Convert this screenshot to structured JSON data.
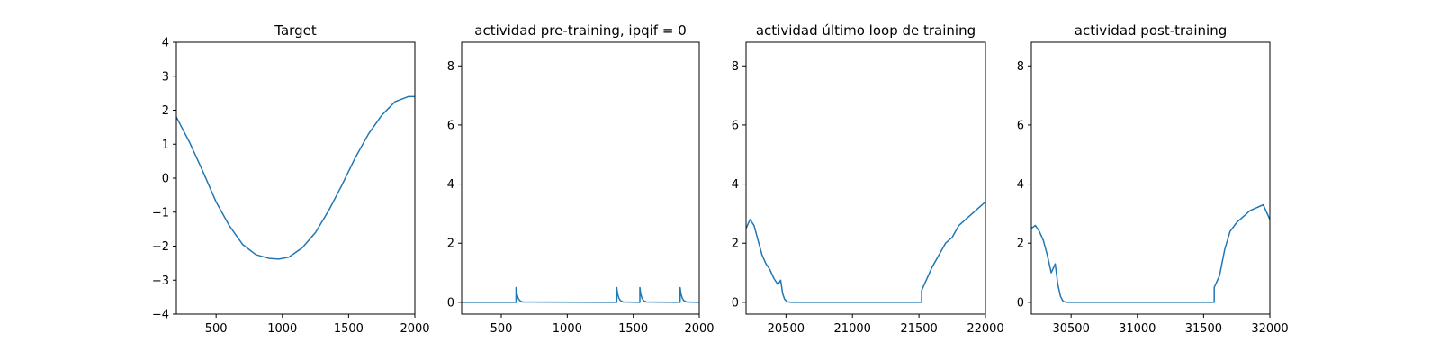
{
  "chart_data": [
    {
      "type": "line",
      "title": "Target",
      "xlim": [
        200,
        2000
      ],
      "ylim": [
        -4,
        4
      ],
      "xticks": [
        500,
        1000,
        1500,
        2000
      ],
      "yticks": [
        -4,
        -3,
        -2,
        -1,
        0,
        1,
        2,
        3,
        4
      ],
      "color": "#1f77b4",
      "series": [
        {
          "x": [
            200,
            300,
            400,
            500,
            600,
            700,
            800,
            900,
            975,
            1050,
            1150,
            1250,
            1350,
            1450,
            1550,
            1650,
            1750,
            1850,
            1950,
            2000
          ],
          "y": [
            1.8,
            1.05,
            0.2,
            -0.7,
            -1.4,
            -1.95,
            -2.25,
            -2.36,
            -2.38,
            -2.32,
            -2.05,
            -1.6,
            -0.95,
            -0.2,
            0.6,
            1.3,
            1.85,
            2.25,
            2.4,
            2.4
          ]
        }
      ]
    },
    {
      "type": "line",
      "title": "actividad pre-training, ipqif = 0",
      "xlim": [
        200,
        2000
      ],
      "ylim": [
        -0.4,
        8.8
      ],
      "xticks": [
        500,
        1000,
        1500,
        2000
      ],
      "yticks": [
        0,
        2,
        4,
        6,
        8
      ],
      "color": "#1f77b4",
      "series": [
        {
          "x": [
            200,
            612,
            612,
            618,
            628,
            640,
            660,
            1375,
            1375,
            1381,
            1391,
            1403,
            1423,
            1550,
            1550,
            1556,
            1566,
            1578,
            1598,
            1855,
            1855,
            1861,
            1871,
            1883,
            1903,
            2000
          ],
          "y": [
            0,
            0,
            0.5,
            0.3,
            0.14,
            0.06,
            0.01,
            0,
            0.5,
            0.3,
            0.14,
            0.06,
            0.01,
            0,
            0.5,
            0.3,
            0.14,
            0.06,
            0.01,
            0,
            0.5,
            0.3,
            0.14,
            0.06,
            0.01,
            0
          ]
        }
      ]
    },
    {
      "type": "line",
      "title": "actividad último loop de training",
      "xlim": [
        20200,
        22000
      ],
      "ylim": [
        -0.4,
        8.8
      ],
      "xticks": [
        20500,
        21000,
        21500,
        22000
      ],
      "yticks": [
        0,
        2,
        4,
        6,
        8
      ],
      "color": "#1f77b4",
      "series": [
        {
          "x": [
            20200,
            20230,
            20260,
            20290,
            20320,
            20350,
            20380,
            20410,
            20440,
            20460,
            20475,
            20490,
            20510,
            20540,
            21520,
            21520,
            21560,
            21600,
            21650,
            21700,
            21750,
            21800,
            21850,
            21900,
            21950,
            22000
          ],
          "y": [
            2.5,
            2.8,
            2.6,
            2.1,
            1.6,
            1.3,
            1.1,
            0.8,
            0.6,
            0.75,
            0.3,
            0.1,
            0.02,
            0,
            0,
            0.4,
            0.8,
            1.2,
            1.6,
            2.0,
            2.2,
            2.6,
            2.8,
            3.0,
            3.2,
            3.4
          ]
        }
      ]
    },
    {
      "type": "line",
      "title": "actividad post-training",
      "xlim": [
        30200,
        32000
      ],
      "ylim": [
        -0.4,
        8.8
      ],
      "xticks": [
        30500,
        31000,
        31500,
        32000
      ],
      "yticks": [
        0,
        2,
        4,
        6,
        8
      ],
      "color": "#1f77b4",
      "series": [
        {
          "x": [
            30200,
            30230,
            30260,
            30290,
            30320,
            30350,
            30380,
            30400,
            30420,
            30440,
            30470,
            31580,
            31580,
            31620,
            31660,
            31700,
            31750,
            31800,
            31850,
            31900,
            31950,
            32000
          ],
          "y": [
            2.5,
            2.6,
            2.4,
            2.1,
            1.6,
            1.0,
            1.3,
            0.6,
            0.2,
            0.03,
            0,
            0,
            0.5,
            0.9,
            1.8,
            2.4,
            2.7,
            2.9,
            3.1,
            3.2,
            3.3,
            2.8
          ]
        }
      ]
    }
  ]
}
